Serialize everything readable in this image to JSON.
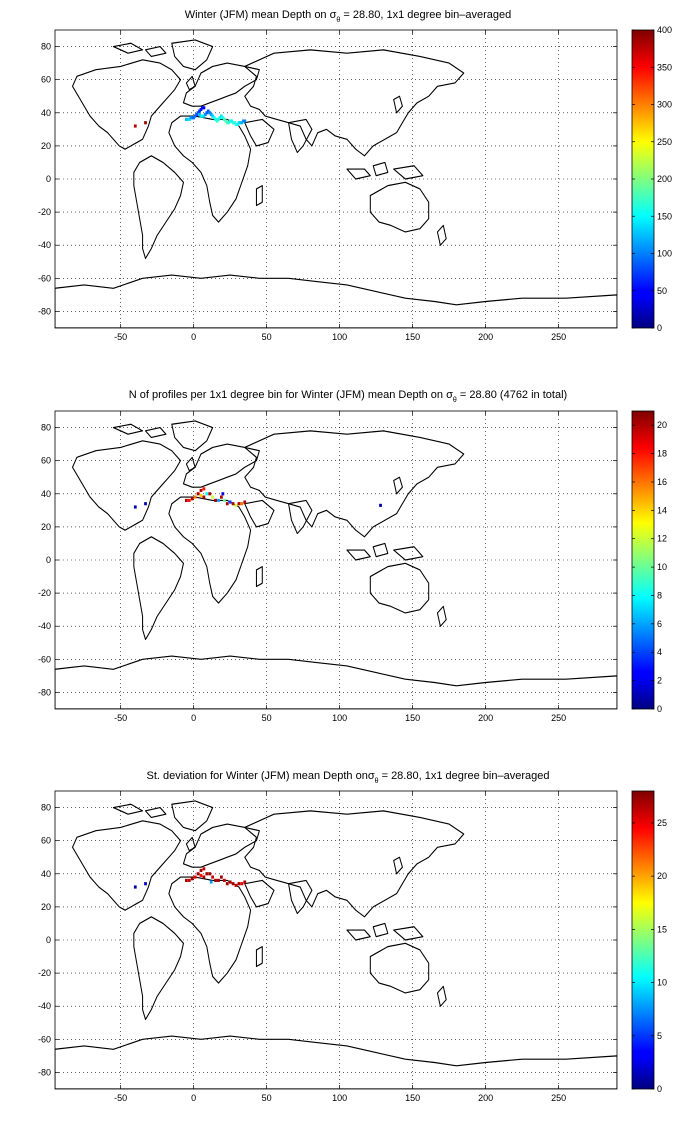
{
  "panels": [
    {
      "title_main": "Winter (JFM) mean Depth on σ",
      "title_sub": "θ",
      "title_rest": " = 28.80, 1x1 degree bin–averaged"
    },
    {
      "title_main": "N of profiles per 1x1 degree bin for Winter (JFM) mean Depth on σ",
      "title_sub": "θ",
      "title_rest": " = 28.80 (4762 in total)"
    },
    {
      "title_main": "St. deviation for Winter (JFM) mean Depth onσ",
      "title_sub": "θ",
      "title_rest": " = 28.80, 1x1 degree bin–averaged"
    }
  ],
  "chart_data": [
    {
      "type": "heatmap",
      "title": "Winter (JFM) mean Depth on σθ = 28.80, 1x1 degree bin–averaged",
      "xlim": [
        -95,
        290
      ],
      "ylim": [
        -90,
        90
      ],
      "xticks": [
        -50,
        0,
        50,
        100,
        150,
        200,
        250
      ],
      "yticks": [
        -80,
        -60,
        -40,
        -20,
        0,
        20,
        40,
        60,
        80
      ],
      "grid": true,
      "colorbar": {
        "range": [
          0,
          400
        ],
        "ticks": [
          0,
          50,
          100,
          150,
          200,
          250,
          300,
          350,
          400
        ],
        "colormap": "jet"
      },
      "data": [
        {
          "lon": -5,
          "lat": 36,
          "value": 120
        },
        {
          "lon": -4,
          "lat": 36,
          "value": 130
        },
        {
          "lon": -3,
          "lat": 36,
          "value": 140
        },
        {
          "lon": -2,
          "lat": 37,
          "value": 110
        },
        {
          "lon": -1,
          "lat": 37,
          "value": 100
        },
        {
          "lon": 0,
          "lat": 37,
          "value": 90
        },
        {
          "lon": 1,
          "lat": 38,
          "value": 95
        },
        {
          "lon": 2,
          "lat": 39,
          "value": 85
        },
        {
          "lon": 3,
          "lat": 40,
          "value": 80
        },
        {
          "lon": 4,
          "lat": 41,
          "value": 70
        },
        {
          "lon": 5,
          "lat": 42,
          "value": 60
        },
        {
          "lon": 6,
          "lat": 43,
          "value": 55
        },
        {
          "lon": 7,
          "lat": 43,
          "value": 50
        },
        {
          "lon": 4,
          "lat": 39,
          "value": 120
        },
        {
          "lon": 5,
          "lat": 38,
          "value": 140
        },
        {
          "lon": 6,
          "lat": 38,
          "value": 150
        },
        {
          "lon": 7,
          "lat": 38,
          "value": 140
        },
        {
          "lon": 8,
          "lat": 39,
          "value": 110
        },
        {
          "lon": 9,
          "lat": 40,
          "value": 90
        },
        {
          "lon": 10,
          "lat": 41,
          "value": 80
        },
        {
          "lon": 11,
          "lat": 40,
          "value": 100
        },
        {
          "lon": 12,
          "lat": 39,
          "value": 110
        },
        {
          "lon": 13,
          "lat": 38,
          "value": 130
        },
        {
          "lon": 14,
          "lat": 37,
          "value": 150
        },
        {
          "lon": 15,
          "lat": 36,
          "value": 160
        },
        {
          "lon": 16,
          "lat": 35,
          "value": 170
        },
        {
          "lon": 17,
          "lat": 36,
          "value": 160
        },
        {
          "lon": 18,
          "lat": 37,
          "value": 150
        },
        {
          "lon": 19,
          "lat": 38,
          "value": 140
        },
        {
          "lon": 20,
          "lat": 37,
          "value": 160
        },
        {
          "lon": 21,
          "lat": 36,
          "value": 170
        },
        {
          "lon": 22,
          "lat": 35,
          "value": 175
        },
        {
          "lon": 23,
          "lat": 34,
          "value": 180
        },
        {
          "lon": 24,
          "lat": 34,
          "value": 170
        },
        {
          "lon": 25,
          "lat": 35,
          "value": 160
        },
        {
          "lon": 26,
          "lat": 35,
          "value": 150
        },
        {
          "lon": 27,
          "lat": 34,
          "value": 160
        },
        {
          "lon": 28,
          "lat": 34,
          "value": 170
        },
        {
          "lon": 29,
          "lat": 33,
          "value": 165
        },
        {
          "lon": 30,
          "lat": 33,
          "value": 150
        },
        {
          "lon": 31,
          "lat": 34,
          "value": 140
        },
        {
          "lon": 32,
          "lat": 34,
          "value": 130
        },
        {
          "lon": 33,
          "lat": 34,
          "value": 120
        },
        {
          "lon": 34,
          "lat": 35,
          "value": 110
        },
        {
          "lon": 35,
          "lat": 35,
          "value": 100
        },
        {
          "lon": -40,
          "lat": 32,
          "value": 380
        },
        {
          "lon": -33,
          "lat": 34,
          "value": 390
        }
      ]
    },
    {
      "type": "heatmap",
      "title": "N of profiles per 1x1 degree bin for Winter (JFM) mean Depth on σθ = 28.80 (4762 in total)",
      "xlim": [
        -95,
        290
      ],
      "ylim": [
        -90,
        90
      ],
      "xticks": [
        -50,
        0,
        50,
        100,
        150,
        200,
        250
      ],
      "yticks": [
        -80,
        -60,
        -40,
        -20,
        0,
        20,
        40,
        60,
        80
      ],
      "grid": true,
      "colorbar": {
        "range": [
          0,
          21
        ],
        "ticks": [
          0,
          2,
          4,
          6,
          8,
          10,
          12,
          14,
          16,
          18,
          20
        ],
        "colormap": "jet"
      },
      "data": [
        {
          "lon": -5,
          "lat": 36,
          "value": 20
        },
        {
          "lon": -3,
          "lat": 36,
          "value": 18
        },
        {
          "lon": -1,
          "lat": 37,
          "value": 20
        },
        {
          "lon": 1,
          "lat": 38,
          "value": 16
        },
        {
          "lon": 3,
          "lat": 40,
          "value": 20
        },
        {
          "lon": 5,
          "lat": 42,
          "value": 20
        },
        {
          "lon": 7,
          "lat": 43,
          "value": 18
        },
        {
          "lon": 5,
          "lat": 39,
          "value": 14
        },
        {
          "lon": 7,
          "lat": 38,
          "value": 20
        },
        {
          "lon": 9,
          "lat": 40,
          "value": 8
        },
        {
          "lon": 11,
          "lat": 40,
          "value": 20
        },
        {
          "lon": 13,
          "lat": 38,
          "value": 12
        },
        {
          "lon": 15,
          "lat": 36,
          "value": 20
        },
        {
          "lon": 17,
          "lat": 36,
          "value": 6
        },
        {
          "lon": 19,
          "lat": 38,
          "value": 20
        },
        {
          "lon": 21,
          "lat": 36,
          "value": 10
        },
        {
          "lon": 23,
          "lat": 34,
          "value": 20
        },
        {
          "lon": 25,
          "lat": 35,
          "value": 4
        },
        {
          "lon": 27,
          "lat": 34,
          "value": 20
        },
        {
          "lon": 29,
          "lat": 33,
          "value": 12
        },
        {
          "lon": 31,
          "lat": 34,
          "value": 20
        },
        {
          "lon": 33,
          "lat": 34,
          "value": 16
        },
        {
          "lon": 35,
          "lat": 35,
          "value": 20
        },
        {
          "lon": 20,
          "lat": 40,
          "value": 2
        },
        {
          "lon": -40,
          "lat": 32,
          "value": 1
        },
        {
          "lon": -33,
          "lat": 34,
          "value": 1
        },
        {
          "lon": 128,
          "lat": 33,
          "value": 1
        }
      ]
    },
    {
      "type": "heatmap",
      "title": "St. deviation for Winter (JFM) mean Depth onσθ = 28.80, 1x1 degree bin–averaged",
      "xlim": [
        -95,
        290
      ],
      "ylim": [
        -90,
        90
      ],
      "xticks": [
        -50,
        0,
        50,
        100,
        150,
        200,
        250
      ],
      "yticks": [
        -80,
        -60,
        -40,
        -20,
        0,
        20,
        40,
        60,
        80
      ],
      "grid": true,
      "colorbar": {
        "range": [
          0,
          28
        ],
        "ticks": [
          0,
          5,
          10,
          15,
          20,
          25
        ],
        "colormap": "jet"
      },
      "data": [
        {
          "lon": -5,
          "lat": 36,
          "value": 27
        },
        {
          "lon": -3,
          "lat": 36,
          "value": 26
        },
        {
          "lon": -1,
          "lat": 37,
          "value": 27
        },
        {
          "lon": 1,
          "lat": 38,
          "value": 25
        },
        {
          "lon": 3,
          "lat": 40,
          "value": 27
        },
        {
          "lon": 5,
          "lat": 42,
          "value": 27
        },
        {
          "lon": 7,
          "lat": 43,
          "value": 26
        },
        {
          "lon": 5,
          "lat": 39,
          "value": 24
        },
        {
          "lon": 7,
          "lat": 38,
          "value": 27
        },
        {
          "lon": 9,
          "lat": 40,
          "value": 27
        },
        {
          "lon": 11,
          "lat": 40,
          "value": 27
        },
        {
          "lon": 13,
          "lat": 38,
          "value": 26
        },
        {
          "lon": 15,
          "lat": 36,
          "value": 27
        },
        {
          "lon": 17,
          "lat": 36,
          "value": 27
        },
        {
          "lon": 19,
          "lat": 38,
          "value": 27
        },
        {
          "lon": 21,
          "lat": 36,
          "value": 26
        },
        {
          "lon": 23,
          "lat": 34,
          "value": 27
        },
        {
          "lon": 25,
          "lat": 35,
          "value": 27
        },
        {
          "lon": 27,
          "lat": 34,
          "value": 27
        },
        {
          "lon": 29,
          "lat": 33,
          "value": 26
        },
        {
          "lon": 31,
          "lat": 34,
          "value": 27
        },
        {
          "lon": 33,
          "lat": 34,
          "value": 25
        },
        {
          "lon": 35,
          "lat": 35,
          "value": 27
        },
        {
          "lon": 12,
          "lat": 35,
          "value": 8
        },
        {
          "lon": -40,
          "lat": 32,
          "value": 1
        },
        {
          "lon": -33,
          "lat": 34,
          "value": 2
        }
      ]
    }
  ]
}
